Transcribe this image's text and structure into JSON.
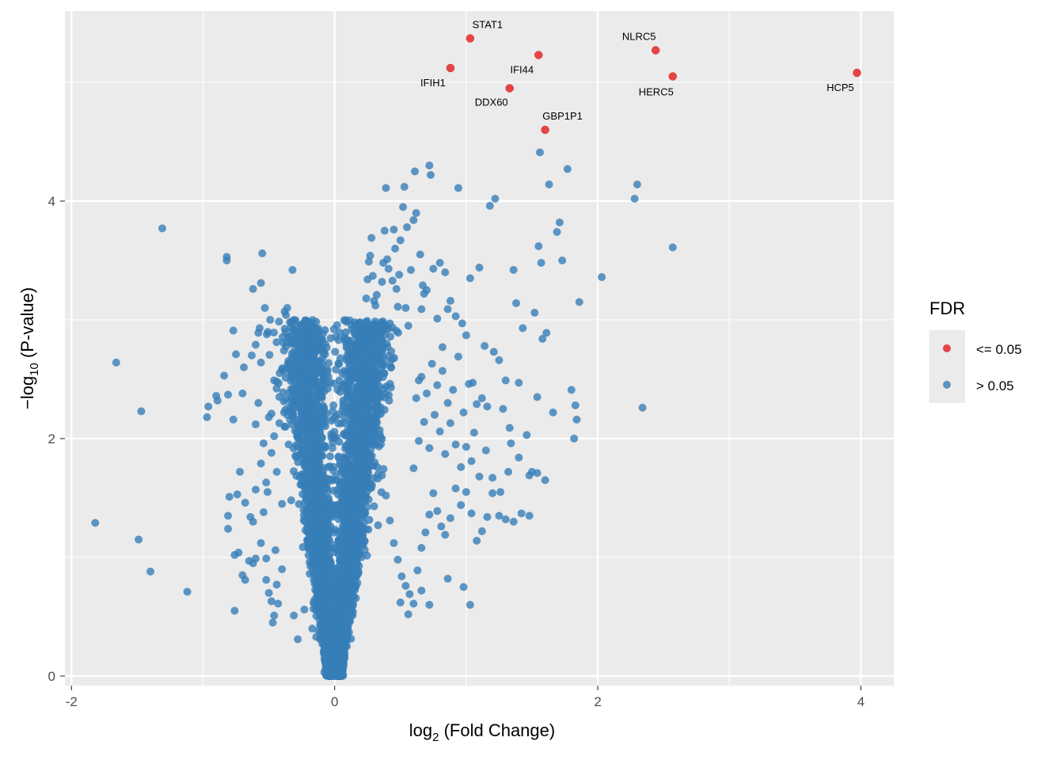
{
  "chart_data": {
    "type": "scatter",
    "title": "",
    "xlabel": {
      "base": "log",
      "sub": "2",
      "rest": " (Fold Change)"
    },
    "ylabel": {
      "base": "−log",
      "sub": "10",
      "rest": " (P-value)"
    },
    "xlim": [
      -2.05,
      4.25
    ],
    "ylim": [
      -0.08,
      5.6
    ],
    "xticks": [
      -2,
      0,
      2,
      4
    ],
    "yticks": [
      0,
      2,
      4
    ],
    "xtick_labels": [
      "-2",
      "0",
      "2",
      "4"
    ],
    "ytick_labels": [
      "0",
      "2",
      "4"
    ],
    "grid": true,
    "legend": {
      "title": "FDR",
      "position": "right",
      "items": [
        {
          "label": "<= 0.05",
          "color": "#e41a1c"
        },
        {
          "label": "> 0.05",
          "color": "#377eb8"
        }
      ]
    },
    "colors": {
      "significant": "#e41a1c",
      "not_significant": "#377eb8",
      "panel": "#ebebeb",
      "grid": "#ffffff"
    },
    "significant_points": [
      {
        "gene": "STAT1",
        "x": 1.03,
        "y": 5.37
      },
      {
        "gene": "IFIH1",
        "x": 0.88,
        "y": 5.12
      },
      {
        "gene": "IFI44",
        "x": 1.55,
        "y": 5.23
      },
      {
        "gene": "DDX60",
        "x": 1.33,
        "y": 4.95
      },
      {
        "gene": "GBP1P1",
        "x": 1.6,
        "y": 4.6
      },
      {
        "gene": "NLRC5",
        "x": 2.44,
        "y": 5.27
      },
      {
        "gene": "HERC5",
        "x": 2.57,
        "y": 5.05
      },
      {
        "gene": "HCP5",
        "x": 3.97,
        "y": 5.08
      }
    ],
    "other_points": [
      [
        -1.82,
        1.29
      ],
      [
        -1.66,
        2.64
      ],
      [
        -1.49,
        1.15
      ],
      [
        -1.47,
        2.23
      ],
      [
        -1.4,
        0.88
      ],
      [
        -1.31,
        3.77
      ],
      [
        -1.12,
        0.71
      ],
      [
        -0.97,
        2.18
      ],
      [
        -0.96,
        2.27
      ],
      [
        -0.9,
        2.36
      ],
      [
        -0.89,
        2.32
      ],
      [
        -0.84,
        2.53
      ],
      [
        -0.82,
        3.5
      ],
      [
        -0.82,
        3.53
      ],
      [
        -0.81,
        2.37
      ],
      [
        -0.81,
        1.35
      ],
      [
        -0.81,
        1.24
      ],
      [
        -0.8,
        1.51
      ],
      [
        -0.77,
        2.91
      ],
      [
        -0.77,
        2.16
      ],
      [
        -0.76,
        1.02
      ],
      [
        -0.76,
        0.55
      ],
      [
        -0.75,
        2.71
      ],
      [
        -0.74,
        1.53
      ],
      [
        -0.73,
        1.04
      ],
      [
        -0.72,
        1.72
      ],
      [
        -0.7,
        0.85
      ],
      [
        -0.7,
        2.38
      ],
      [
        -0.69,
        2.6
      ],
      [
        -0.68,
        0.81
      ],
      [
        -0.68,
        1.46
      ],
      [
        -0.65,
        0.97
      ],
      [
        -0.63,
        2.7
      ],
      [
        -0.62,
        1.3
      ],
      [
        -0.62,
        3.26
      ],
      [
        -0.6,
        2.79
      ],
      [
        -0.6,
        2.12
      ],
      [
        -0.6,
        0.99
      ],
      [
        -0.58,
        2.89
      ],
      [
        -0.58,
        2.3
      ],
      [
        -0.57,
        2.93
      ],
      [
        -0.56,
        2.64
      ],
      [
        -0.56,
        3.31
      ],
      [
        -0.55,
        3.56
      ],
      [
        -0.54,
        1.38
      ],
      [
        -0.53,
        3.1
      ],
      [
        -0.52,
        0.81
      ],
      [
        -0.51,
        1.55
      ],
      [
        -0.5,
        0.7
      ],
      [
        -0.49,
        3.0
      ],
      [
        -0.48,
        2.21
      ],
      [
        -0.47,
        0.45
      ],
      [
        -0.46,
        2.49
      ],
      [
        -0.46,
        0.51
      ],
      [
        -0.45,
        1.06
      ],
      [
        -0.44,
        2.48
      ],
      [
        -0.43,
        0.61
      ],
      [
        -0.42,
        2.13
      ],
      [
        -0.4,
        2.58
      ],
      [
        -0.38,
        3.07
      ],
      [
        -0.37,
        3.04
      ],
      [
        -0.36,
        3.1
      ],
      [
        -0.36,
        2.81
      ],
      [
        -0.35,
        1.95
      ],
      [
        -0.34,
        2.98
      ],
      [
        -0.33,
        1.48
      ],
      [
        -0.32,
        3.42
      ],
      [
        -0.31,
        0.51
      ],
      [
        -0.3,
        2.63
      ],
      [
        -0.29,
        2.86
      ],
      [
        -0.28,
        0.31
      ],
      [
        -0.27,
        2.82
      ],
      [
        -0.25,
        2.64
      ],
      [
        -0.24,
        2.56
      ],
      [
        -0.23,
        0.56
      ],
      [
        -0.22,
        2.3
      ],
      [
        -0.21,
        1.67
      ],
      [
        -0.2,
        1.23
      ],
      [
        -0.19,
        0.96
      ],
      [
        -0.18,
        1.85
      ],
      [
        -0.17,
        0.4
      ],
      [
        -0.16,
        0.62
      ],
      [
        -0.15,
        1.41
      ],
      [
        -0.14,
        0.33
      ],
      [
        -0.13,
        1.05
      ],
      [
        -0.12,
        0.72
      ],
      [
        -0.11,
        0.86
      ],
      [
        -0.1,
        0.52
      ],
      [
        -0.09,
        0.4
      ],
      [
        -0.08,
        0.63
      ],
      [
        -0.07,
        0.27
      ],
      [
        -0.06,
        0.38
      ],
      [
        -0.05,
        0.19
      ],
      [
        -0.04,
        0.12
      ],
      [
        -0.03,
        0.08
      ],
      [
        -0.02,
        0.05
      ],
      [
        -0.01,
        0.02
      ],
      [
        0.01,
        0.03
      ],
      [
        0.02,
        0.06
      ],
      [
        0.03,
        0.09
      ],
      [
        0.04,
        0.15
      ],
      [
        0.05,
        0.22
      ],
      [
        0.06,
        0.33
      ],
      [
        0.07,
        0.41
      ],
      [
        0.08,
        0.58
      ],
      [
        0.09,
        0.48
      ],
      [
        0.1,
        0.71
      ],
      [
        0.11,
        0.82
      ],
      [
        0.12,
        1.02
      ],
      [
        0.13,
        1.24
      ],
      [
        0.14,
        1.38
      ],
      [
        0.15,
        1.62
      ],
      [
        0.16,
        1.81
      ],
      [
        0.17,
        2.03
      ],
      [
        0.18,
        2.21
      ],
      [
        0.19,
        2.35
      ],
      [
        0.2,
        2.47
      ],
      [
        0.21,
        2.62
      ],
      [
        0.22,
        2.81
      ],
      [
        0.23,
        2.95
      ],
      [
        0.24,
        3.18
      ],
      [
        0.25,
        3.34
      ],
      [
        0.26,
        3.49
      ],
      [
        0.27,
        3.54
      ],
      [
        0.28,
        3.69
      ],
      [
        0.29,
        3.37
      ],
      [
        0.3,
        3.16
      ],
      [
        0.31,
        3.12
      ],
      [
        0.32,
        3.21
      ],
      [
        0.33,
        2.95
      ],
      [
        0.34,
        2.74
      ],
      [
        0.35,
        2.6
      ],
      [
        0.36,
        3.32
      ],
      [
        0.37,
        3.48
      ],
      [
        0.38,
        3.75
      ],
      [
        0.39,
        4.11
      ],
      [
        0.4,
        3.51
      ],
      [
        0.41,
        3.43
      ],
      [
        0.42,
        2.97
      ],
      [
        0.43,
        2.6
      ],
      [
        0.44,
        3.33
      ],
      [
        0.45,
        3.76
      ],
      [
        0.46,
        3.6
      ],
      [
        0.47,
        3.26
      ],
      [
        0.48,
        3.11
      ],
      [
        0.49,
        3.38
      ],
      [
        0.5,
        3.67
      ],
      [
        0.52,
        3.95
      ],
      [
        0.53,
        4.12
      ],
      [
        0.54,
        3.1
      ],
      [
        0.55,
        3.78
      ],
      [
        0.56,
        2.95
      ],
      [
        0.58,
        3.42
      ],
      [
        0.6,
        3.84
      ],
      [
        0.61,
        4.25
      ],
      [
        0.62,
        3.9
      ],
      [
        0.64,
        2.49
      ],
      [
        0.65,
        3.55
      ],
      [
        0.66,
        3.09
      ],
      [
        0.67,
        3.29
      ],
      [
        0.68,
        3.22
      ],
      [
        0.7,
        3.25
      ],
      [
        0.72,
        4.3
      ],
      [
        0.73,
        4.22
      ],
      [
        0.75,
        3.43
      ],
      [
        0.78,
        3.01
      ],
      [
        0.8,
        3.48
      ],
      [
        0.82,
        2.77
      ],
      [
        0.84,
        3.4
      ],
      [
        0.86,
        3.09
      ],
      [
        0.88,
        3.16
      ],
      [
        0.92,
        3.03
      ],
      [
        0.94,
        4.11
      ],
      [
        0.97,
        2.97
      ],
      [
        1.0,
        2.87
      ],
      [
        1.03,
        3.35
      ],
      [
        1.05,
        2.47
      ],
      [
        1.08,
        2.29
      ],
      [
        1.1,
        3.44
      ],
      [
        1.14,
        2.78
      ],
      [
        1.16,
        2.27
      ],
      [
        1.18,
        3.96
      ],
      [
        1.21,
        2.73
      ],
      [
        1.22,
        4.02
      ],
      [
        1.25,
        2.66
      ],
      [
        1.28,
        2.25
      ],
      [
        1.3,
        2.49
      ],
      [
        1.33,
        2.09
      ],
      [
        1.34,
        1.96
      ],
      [
        1.36,
        3.42
      ],
      [
        1.38,
        3.14
      ],
      [
        1.4,
        2.47
      ],
      [
        1.43,
        2.93
      ],
      [
        1.46,
        2.03
      ],
      [
        1.48,
        1.69
      ],
      [
        1.52,
        3.06
      ],
      [
        1.54,
        2.35
      ],
      [
        1.55,
        3.62
      ],
      [
        1.56,
        4.41
      ],
      [
        1.57,
        3.48
      ],
      [
        1.58,
        2.84
      ],
      [
        1.61,
        2.89
      ],
      [
        1.63,
        4.14
      ],
      [
        1.66,
        2.22
      ],
      [
        1.69,
        3.74
      ],
      [
        1.71,
        3.82
      ],
      [
        1.73,
        3.5
      ],
      [
        1.77,
        4.27
      ],
      [
        1.8,
        2.41
      ],
      [
        1.82,
        2.0
      ],
      [
        1.83,
        2.28
      ],
      [
        1.84,
        2.16
      ],
      [
        1.86,
        3.15
      ],
      [
        2.03,
        3.36
      ],
      [
        2.28,
        4.02
      ],
      [
        2.3,
        4.14
      ],
      [
        2.34,
        2.26
      ],
      [
        2.57,
        3.61
      ],
      [
        0.12,
        1.55
      ],
      [
        0.15,
        1.9
      ],
      [
        0.18,
        1.71
      ],
      [
        0.21,
        1.49
      ],
      [
        0.24,
        1.88
      ],
      [
        0.27,
        1.62
      ],
      [
        0.3,
        1.43
      ],
      [
        0.33,
        1.27
      ],
      [
        0.36,
        1.69
      ],
      [
        0.39,
        1.52
      ],
      [
        0.42,
        1.31
      ],
      [
        0.45,
        1.12
      ],
      [
        0.48,
        0.98
      ],
      [
        0.51,
        0.84
      ],
      [
        0.54,
        0.76
      ],
      [
        0.57,
        0.69
      ],
      [
        0.6,
        0.61
      ],
      [
        0.63,
        0.89
      ],
      [
        0.66,
        1.08
      ],
      [
        0.69,
        1.21
      ],
      [
        0.72,
        1.36
      ],
      [
        0.75,
        1.54
      ],
      [
        0.78,
        1.39
      ],
      [
        0.81,
        1.26
      ],
      [
        0.84,
        1.19
      ],
      [
        0.88,
        1.33
      ],
      [
        0.92,
        1.58
      ],
      [
        0.96,
        1.44
      ],
      [
        1.0,
        1.55
      ],
      [
        1.04,
        1.37
      ],
      [
        1.08,
        1.14
      ],
      [
        1.12,
        1.22
      ],
      [
        1.16,
        1.34
      ],
      [
        1.2,
        1.54
      ],
      [
        1.25,
        1.35
      ],
      [
        1.3,
        1.32
      ],
      [
        1.36,
        1.3
      ],
      [
        1.42,
        1.37
      ],
      [
        1.48,
        1.35
      ],
      [
        1.54,
        1.71
      ],
      [
        1.6,
        1.65
      ],
      [
        0.5,
        0.62
      ],
      [
        0.56,
        0.52
      ],
      [
        0.66,
        0.72
      ],
      [
        0.72,
        0.6
      ],
      [
        0.86,
        0.82
      ],
      [
        0.98,
        0.75
      ],
      [
        1.03,
        0.6
      ],
      [
        0.6,
        1.75
      ],
      [
        0.64,
        1.98
      ],
      [
        0.68,
        2.14
      ],
      [
        0.72,
        1.92
      ],
      [
        0.76,
        2.2
      ],
      [
        0.8,
        2.06
      ],
      [
        0.84,
        1.87
      ],
      [
        0.88,
        2.13
      ],
      [
        0.92,
        1.95
      ],
      [
        0.96,
        1.76
      ],
      [
        1.0,
        1.93
      ],
      [
        1.04,
        1.81
      ],
      [
        1.1,
        1.68
      ],
      [
        1.15,
        1.9
      ],
      [
        1.2,
        1.67
      ],
      [
        1.26,
        1.55
      ],
      [
        1.32,
        1.72
      ],
      [
        1.4,
        1.84
      ],
      [
        1.5,
        1.72
      ],
      [
        0.62,
        2.34
      ],
      [
        0.66,
        2.52
      ],
      [
        0.7,
        2.38
      ],
      [
        0.74,
        2.63
      ],
      [
        0.78,
        2.45
      ],
      [
        0.82,
        2.57
      ],
      [
        0.86,
        2.3
      ],
      [
        0.9,
        2.41
      ],
      [
        0.94,
        2.69
      ],
      [
        0.98,
        2.22
      ],
      [
        1.02,
        2.46
      ],
      [
        1.06,
        2.05
      ],
      [
        1.12,
        2.34
      ],
      [
        -0.4,
        1.45
      ],
      [
        -0.44,
        1.72
      ],
      [
        -0.48,
        1.88
      ],
      [
        -0.52,
        1.63
      ],
      [
        -0.56,
        1.79
      ],
      [
        -0.6,
        1.57
      ],
      [
        -0.64,
        1.34
      ],
      [
        -0.4,
        0.9
      ],
      [
        -0.44,
        0.77
      ],
      [
        -0.48,
        0.63
      ],
      [
        -0.52,
        0.99
      ],
      [
        -0.56,
        1.12
      ],
      [
        -0.62,
        0.95
      ],
      [
        -0.38,
        2.1
      ],
      [
        -0.42,
        2.35
      ],
      [
        -0.46,
        2.02
      ],
      [
        -0.5,
        2.18
      ],
      [
        -0.54,
        1.96
      ]
    ]
  }
}
